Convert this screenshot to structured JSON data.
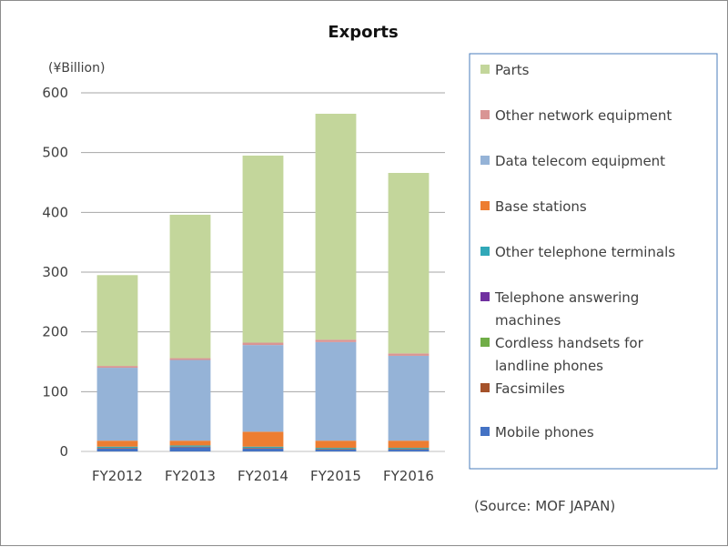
{
  "chart_data": {
    "type": "bar",
    "stacked": true,
    "title": "Exports",
    "unit_label": "(¥Billion)",
    "source_note": "(Source: MOF JAPAN)",
    "xlabel": "",
    "ylabel": "",
    "ylim": [
      0,
      600
    ],
    "yticks": [
      0,
      100,
      200,
      300,
      400,
      500,
      600
    ],
    "grid": true,
    "legend_position": "right",
    "categories": [
      "FY2012",
      "FY2013",
      "FY2014",
      "FY2015",
      "FY2016"
    ],
    "series": [
      {
        "name": "Mobile phones",
        "color": "#4472c4",
        "values": [
          5,
          7,
          5,
          3,
          3
        ]
      },
      {
        "name": "Facsimiles",
        "color": "#a5522a",
        "values": [
          1,
          1,
          1,
          1,
          1
        ]
      },
      {
        "name": "Cordless handsets for landline phones",
        "color": "#70ad47",
        "values": [
          0,
          0,
          0,
          0,
          0
        ]
      },
      {
        "name": "Telephone answering machines",
        "color": "#7030a0",
        "values": [
          0,
          0,
          0,
          0,
          0
        ]
      },
      {
        "name": "Other telephone terminals",
        "color": "#31a8b8",
        "values": [
          2,
          2,
          2,
          2,
          2
        ]
      },
      {
        "name": "Base stations",
        "color": "#ed7d31",
        "values": [
          10,
          8,
          25,
          12,
          12
        ]
      },
      {
        "name": "Data telecom equipment",
        "color": "#95b3d7",
        "values": [
          122,
          135,
          145,
          165,
          142
        ]
      },
      {
        "name": "Other network equipment",
        "color": "#d99594",
        "values": [
          3,
          3,
          4,
          4,
          4
        ]
      },
      {
        "name": "Parts",
        "color": "#c3d69b",
        "values": [
          152,
          240,
          313,
          378,
          302
        ]
      }
    ],
    "legend_order": [
      "Parts",
      "Other network equipment",
      "Data telecom equipment",
      "Base stations",
      "Other telephone terminals",
      "Telephone answering machines",
      "Cordless handsets for landline phones",
      "Facsimiles",
      "Mobile phones"
    ],
    "colors": {
      "axis": "#bfbfbf",
      "grid": "#a6a6a6",
      "legend_border": "#4a7ebb"
    }
  }
}
